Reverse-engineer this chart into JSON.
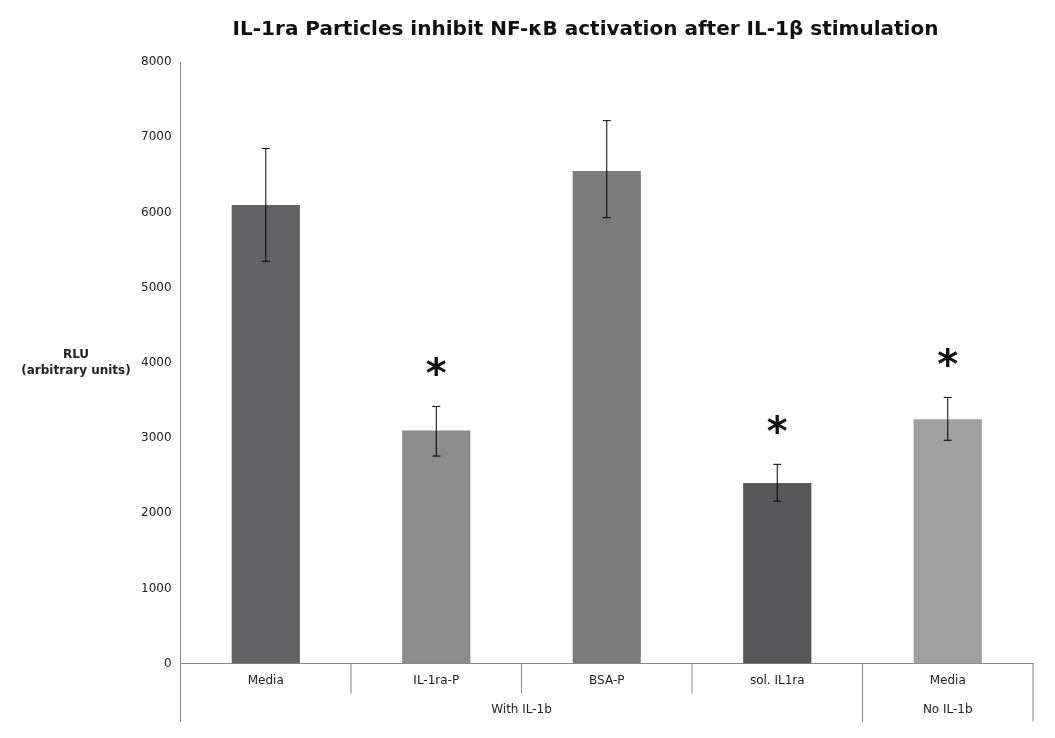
{
  "chart_data": {
    "type": "bar",
    "title": "IL-1ra Particles inhibit NF-κB activation after IL-1β stimulation",
    "ylabel": "RLU\n(arbitrary units)",
    "categories": [
      "Media",
      "IL-1ra-P",
      "BSA-P",
      "sol. IL1ra",
      "Media"
    ],
    "values": [
      6100,
      3100,
      6550,
      2400,
      3250
    ],
    "errors": [
      [
        5350,
        6850
      ],
      [
        2760,
        3420
      ],
      [
        5930,
        7220
      ],
      [
        2160,
        2650
      ],
      [
        2970,
        3540
      ]
    ],
    "colors": [
      "#636365",
      "#8c8c8c",
      "#7a7a7a",
      "#58585a",
      "#a0a0a0"
    ],
    "ylim": [
      0,
      8000
    ],
    "yticks": [
      0,
      1000,
      2000,
      3000,
      4000,
      5000,
      6000,
      7000,
      8000
    ],
    "grid": false,
    "legend": false,
    "annotations": [
      "With IL-1b",
      "No IL-1b",
      "*",
      "*",
      "*"
    ]
  }
}
